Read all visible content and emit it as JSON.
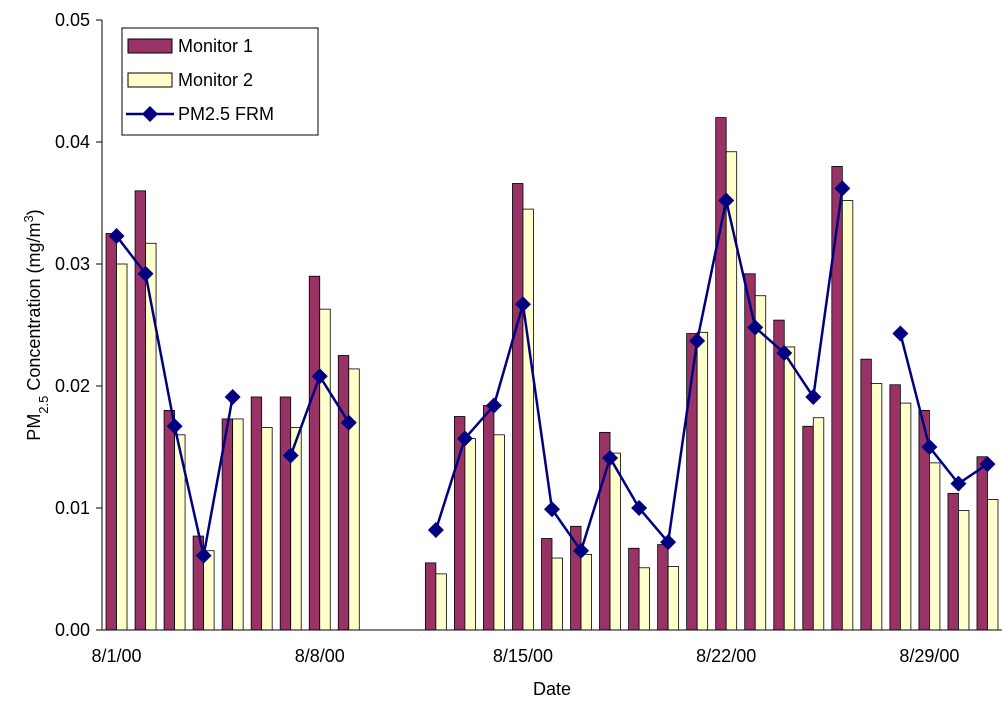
{
  "chart_data": {
    "type": "bar_line",
    "x_label": "Date",
    "y_label": {
      "main": "PM",
      "sub": "2.5",
      "rest": " Concentration (mg/m",
      "sup": "3",
      "end": ")"
    },
    "categories": [
      "8/1/00",
      null,
      null,
      null,
      null,
      null,
      null,
      "8/8/00",
      null,
      null,
      null,
      null,
      null,
      null,
      "8/15/00",
      null,
      null,
      null,
      null,
      null,
      null,
      "8/22/00",
      null,
      null,
      null,
      null,
      null,
      null,
      "8/29/00",
      null,
      null
    ],
    "series": [
      {
        "name": "Monitor 1",
        "type": "bar",
        "color": "#993366",
        "values": [
          0.0325,
          0.036,
          0.018,
          0.0077,
          0.0173,
          0.0191,
          0.0191,
          0.029,
          0.0225,
          null,
          null,
          0.0055,
          0.0175,
          0.0184,
          0.0366,
          0.0075,
          0.0085,
          0.0162,
          0.0067,
          0.007,
          0.0243,
          0.042,
          0.0292,
          0.0254,
          0.0167,
          0.038,
          0.0222,
          0.0201,
          0.018,
          0.0112,
          0.0142
        ]
      },
      {
        "name": "Monitor 2",
        "type": "bar",
        "color": "#ffffcc",
        "values": [
          0.03,
          0.0317,
          0.016,
          0.0065,
          0.0173,
          0.0166,
          0.0166,
          0.0263,
          0.0214,
          null,
          null,
          0.0046,
          0.0157,
          0.016,
          0.0345,
          0.0059,
          0.0062,
          0.0145,
          0.0051,
          0.0052,
          0.0244,
          0.0392,
          0.0274,
          0.0232,
          0.0174,
          0.0352,
          0.0202,
          0.0186,
          0.0137,
          0.0098,
          0.0107
        ]
      },
      {
        "name": "PM2.5 FRM",
        "type": "line",
        "color": "#000080",
        "values": [
          0.0323,
          0.0292,
          0.0167,
          0.0061,
          0.0191,
          null,
          0.0143,
          0.0208,
          0.017,
          null,
          null,
          0.0082,
          0.0157,
          0.0184,
          0.0267,
          0.0099,
          0.0065,
          0.0141,
          0.01,
          0.0072,
          0.0237,
          0.0352,
          0.0248,
          0.0227,
          0.0191,
          0.0362,
          null,
          0.0243,
          0.015,
          0.012,
          0.0136
        ]
      }
    ],
    "ylim": [
      0,
      0.05
    ],
    "yticks": [
      {
        "value": 0,
        "label": "0.00"
      },
      0.01,
      0.02,
      0.03,
      0.04,
      0.05
    ],
    "grid": false,
    "legend": "upper-left"
  }
}
